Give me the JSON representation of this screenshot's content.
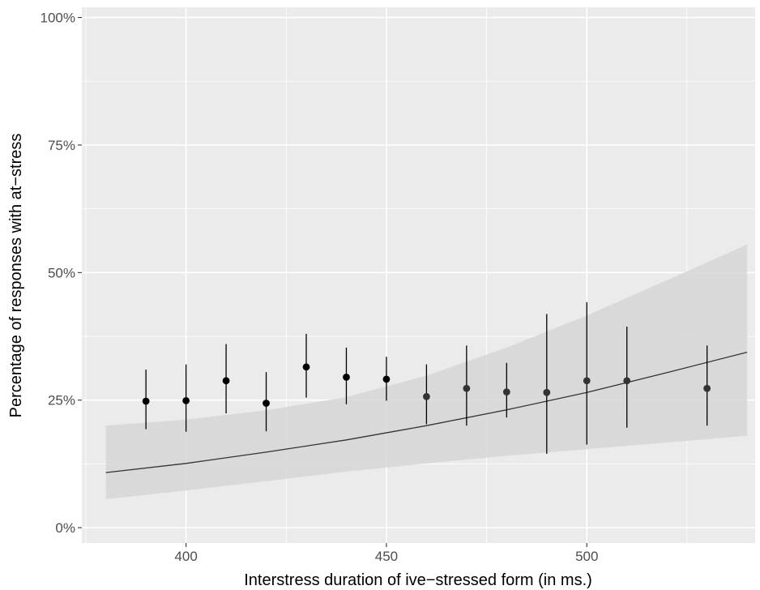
{
  "chart_data": {
    "type": "scatter",
    "xlabel": "Interstress duration of ive−stressed form (in ms.)",
    "ylabel": "Percentage of responses with at−stress",
    "xlim": [
      374,
      542
    ],
    "ylim": [
      -3,
      102
    ],
    "x_ticks": [
      400,
      450,
      500
    ],
    "x_tick_labels": [
      "400",
      "450",
      "500"
    ],
    "y_ticks": [
      0,
      25,
      50,
      75,
      100
    ],
    "y_tick_labels": [
      "0%",
      "25%",
      "50%",
      "75%",
      "100%"
    ],
    "grid": true,
    "points": [
      {
        "x": 390,
        "y": 24.8,
        "lo": 19.3,
        "hi": 31.0
      },
      {
        "x": 400,
        "y": 24.9,
        "lo": 18.8,
        "hi": 32.0
      },
      {
        "x": 410,
        "y": 28.8,
        "lo": 22.4,
        "hi": 36.0
      },
      {
        "x": 420,
        "y": 24.4,
        "lo": 18.9,
        "hi": 30.5
      },
      {
        "x": 430,
        "y": 31.5,
        "lo": 25.5,
        "hi": 38.0
      },
      {
        "x": 440,
        "y": 29.5,
        "lo": 24.2,
        "hi": 35.3
      },
      {
        "x": 450,
        "y": 29.1,
        "lo": 24.9,
        "hi": 33.5
      },
      {
        "x": 460,
        "y": 25.7,
        "lo": 20.3,
        "hi": 32.0
      },
      {
        "x": 470,
        "y": 27.3,
        "lo": 20.0,
        "hi": 35.7
      },
      {
        "x": 480,
        "y": 26.6,
        "lo": 21.6,
        "hi": 32.3
      },
      {
        "x": 490,
        "y": 26.5,
        "lo": 14.5,
        "hi": 41.9
      },
      {
        "x": 500,
        "y": 28.8,
        "lo": 16.3,
        "hi": 44.2
      },
      {
        "x": 510,
        "y": 28.8,
        "lo": 19.6,
        "hi": 39.4
      },
      {
        "x": 530,
        "y": 27.3,
        "lo": 20.0,
        "hi": 35.7
      }
    ],
    "fit": [
      {
        "x": 380,
        "y": 10.8,
        "lo": 5.6,
        "hi": 20.0
      },
      {
        "x": 400,
        "y": 12.6,
        "lo": 7.3,
        "hi": 21.2
      },
      {
        "x": 420,
        "y": 14.8,
        "lo": 9.1,
        "hi": 23.0
      },
      {
        "x": 440,
        "y": 17.2,
        "lo": 11.0,
        "hi": 25.6
      },
      {
        "x": 460,
        "y": 20.0,
        "lo": 12.6,
        "hi": 29.8
      },
      {
        "x": 480,
        "y": 23.1,
        "lo": 14.1,
        "hi": 35.3
      },
      {
        "x": 500,
        "y": 26.5,
        "lo": 15.4,
        "hi": 41.6
      },
      {
        "x": 520,
        "y": 30.4,
        "lo": 16.7,
        "hi": 48.5
      },
      {
        "x": 540,
        "y": 34.4,
        "lo": 18.0,
        "hi": 55.5
      }
    ],
    "colors": {
      "panel": "#ebebeb",
      "grid": "#ffffff",
      "ribbon": "#d6d6d6",
      "fit_line": "#333333",
      "error_bar": "#000000",
      "point_dark": "#000000",
      "point_light": "#333333"
    }
  }
}
